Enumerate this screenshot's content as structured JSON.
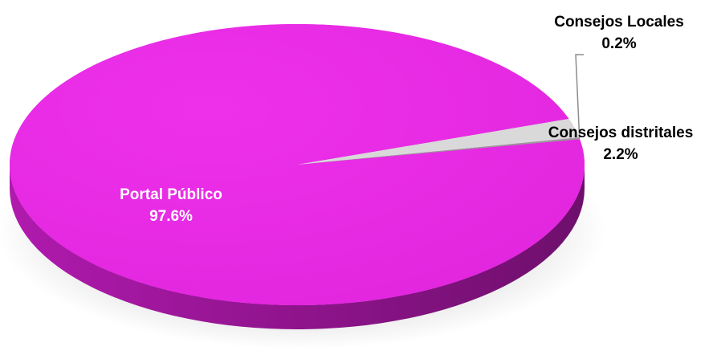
{
  "chart_data": {
    "type": "pie",
    "style": "3d",
    "title": "",
    "slices": [
      {
        "label": "Portal Público",
        "pct_label": "97.6%",
        "value": 97.6,
        "color": "#ea2ae6"
      },
      {
        "label": "Consejos distritales",
        "pct_label": "2.2%",
        "value": 2.2,
        "color": "#d9d9d9"
      },
      {
        "label": "Consejos Locales",
        "pct_label": "0.2%",
        "value": 0.2,
        "color": "#9a9a9a"
      }
    ],
    "legend": "none"
  }
}
